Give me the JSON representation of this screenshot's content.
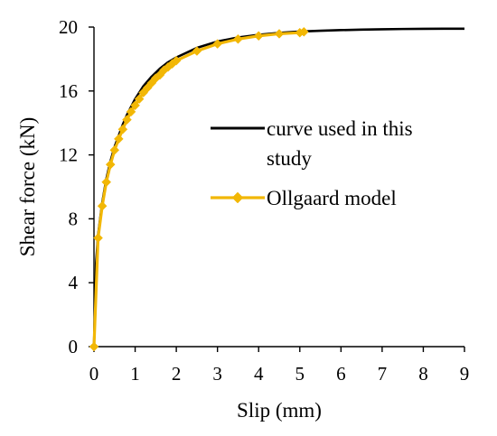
{
  "chart_data": {
    "type": "line",
    "title": "",
    "xlabel": "Slip (mm)",
    "ylabel": "Shear force (kN)",
    "xlim": [
      0,
      9
    ],
    "ylim": [
      0,
      20
    ],
    "xticks": [
      0,
      1,
      2,
      3,
      4,
      5,
      6,
      7,
      8,
      9
    ],
    "yticks": [
      0,
      4,
      8,
      12,
      16,
      20
    ],
    "grid": false,
    "legend_position": "right",
    "series": [
      {
        "name": "curve used in this study",
        "color": "#000000",
        "marker": "none",
        "x": [
          0,
          0.05,
          0.1,
          0.2,
          0.3,
          0.4,
          0.5,
          0.6,
          0.7,
          0.8,
          0.9,
          1.0,
          1.2,
          1.4,
          1.6,
          1.8,
          2.0,
          2.5,
          3.0,
          3.5,
          4.0,
          4.5,
          5.0,
          5.5,
          6.0,
          6.5,
          7.0,
          7.5,
          8.0,
          8.5,
          9.0
        ],
        "y": [
          0,
          5.2,
          7.0,
          9.0,
          10.5,
          11.6,
          12.5,
          13.2,
          13.9,
          14.5,
          15.0,
          15.5,
          16.3,
          16.9,
          17.4,
          17.8,
          18.1,
          18.7,
          19.1,
          19.35,
          19.52,
          19.64,
          19.72,
          19.77,
          19.81,
          19.84,
          19.86,
          19.88,
          19.89,
          19.9,
          19.9
        ]
      },
      {
        "name": "Ollgaard model",
        "color": "#F2B705",
        "marker": "diamond",
        "x": [
          0,
          0.1,
          0.2,
          0.3,
          0.4,
          0.5,
          0.6,
          0.7,
          0.8,
          0.9,
          1.0,
          1.1,
          1.2,
          1.3,
          1.4,
          1.5,
          1.6,
          1.7,
          1.8,
          1.9,
          2.0,
          2.5,
          3.0,
          3.5,
          4.0,
          4.5,
          5.0,
          5.1
        ],
        "y": [
          0,
          6.8,
          8.8,
          10.3,
          11.4,
          12.3,
          13.0,
          13.6,
          14.2,
          14.7,
          15.1,
          15.5,
          15.9,
          16.2,
          16.5,
          16.8,
          17.0,
          17.3,
          17.5,
          17.7,
          17.9,
          18.5,
          18.95,
          19.25,
          19.45,
          19.58,
          19.65,
          19.7
        ]
      }
    ]
  }
}
